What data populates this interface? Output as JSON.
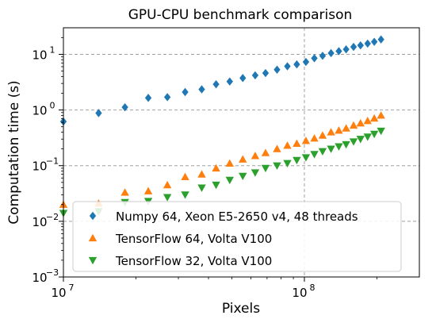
{
  "chart_data": {
    "type": "scatter",
    "title": "GPU-CPU benchmark comparison",
    "xlabel": "Pixels",
    "ylabel": "Computation time (s)",
    "xscale": "log",
    "yscale": "log",
    "xlim": [
      10000000,
      300000000
    ],
    "ylim": [
      0.001,
      30
    ],
    "xticks": [
      {
        "value": 10000000,
        "base": "10",
        "exp": "7"
      },
      {
        "value": 100000000,
        "base": "10",
        "exp": "8"
      }
    ],
    "yticks": [
      {
        "value": 0.001,
        "base": "10",
        "exp": "−3"
      },
      {
        "value": 0.01,
        "base": "10",
        "exp": "−2"
      },
      {
        "value": 0.1,
        "base": "10",
        "exp": "−1"
      },
      {
        "value": 1,
        "base": "10",
        "exp": "0"
      },
      {
        "value": 10,
        "base": "10",
        "exp": "1"
      }
    ],
    "grid": "dashed, at major ticks",
    "legend_position": "lower-left",
    "x": [
      10000000,
      14000000,
      18000000,
      22500000,
      27000000,
      32000000,
      37500000,
      43000000,
      49000000,
      55500000,
      62500000,
      69000000,
      77000000,
      85000000,
      93000000,
      101500000,
      110000000,
      119000000,
      129000000,
      139000000,
      149000000,
      160000000,
      171000000,
      183000000,
      195000000,
      208000000
    ],
    "series": [
      {
        "name": "Numpy 64, Xeon E5-2650 v4, 48 threads",
        "marker": "diamond",
        "color": "#1f77b4",
        "values": [
          0.62,
          0.88,
          1.12,
          1.65,
          1.7,
          2.1,
          2.35,
          2.9,
          3.25,
          3.75,
          4.2,
          4.6,
          5.3,
          6.1,
          6.6,
          7.3,
          8.5,
          9.4,
          10.5,
          11.4,
          12.3,
          13.6,
          14.5,
          15.6,
          16.8,
          18.5
        ]
      },
      {
        "name": "TensorFlow 64, Volta V100",
        "marker": "triangle-up",
        "color": "#ff7f0e",
        "values": [
          0.02,
          0.021,
          0.033,
          0.035,
          0.045,
          0.063,
          0.07,
          0.09,
          0.11,
          0.13,
          0.15,
          0.17,
          0.2,
          0.23,
          0.25,
          0.28,
          0.31,
          0.35,
          0.4,
          0.43,
          0.47,
          0.53,
          0.58,
          0.64,
          0.71,
          0.8
        ]
      },
      {
        "name": "TensorFlow 32, Volta V100",
        "marker": "triangle-down",
        "color": "#2ca02c",
        "values": [
          0.014,
          0.015,
          0.022,
          0.023,
          0.027,
          0.03,
          0.04,
          0.045,
          0.055,
          0.065,
          0.075,
          0.09,
          0.1,
          0.11,
          0.125,
          0.14,
          0.16,
          0.18,
          0.2,
          0.22,
          0.24,
          0.27,
          0.3,
          0.33,
          0.37,
          0.42
        ]
      }
    ]
  }
}
